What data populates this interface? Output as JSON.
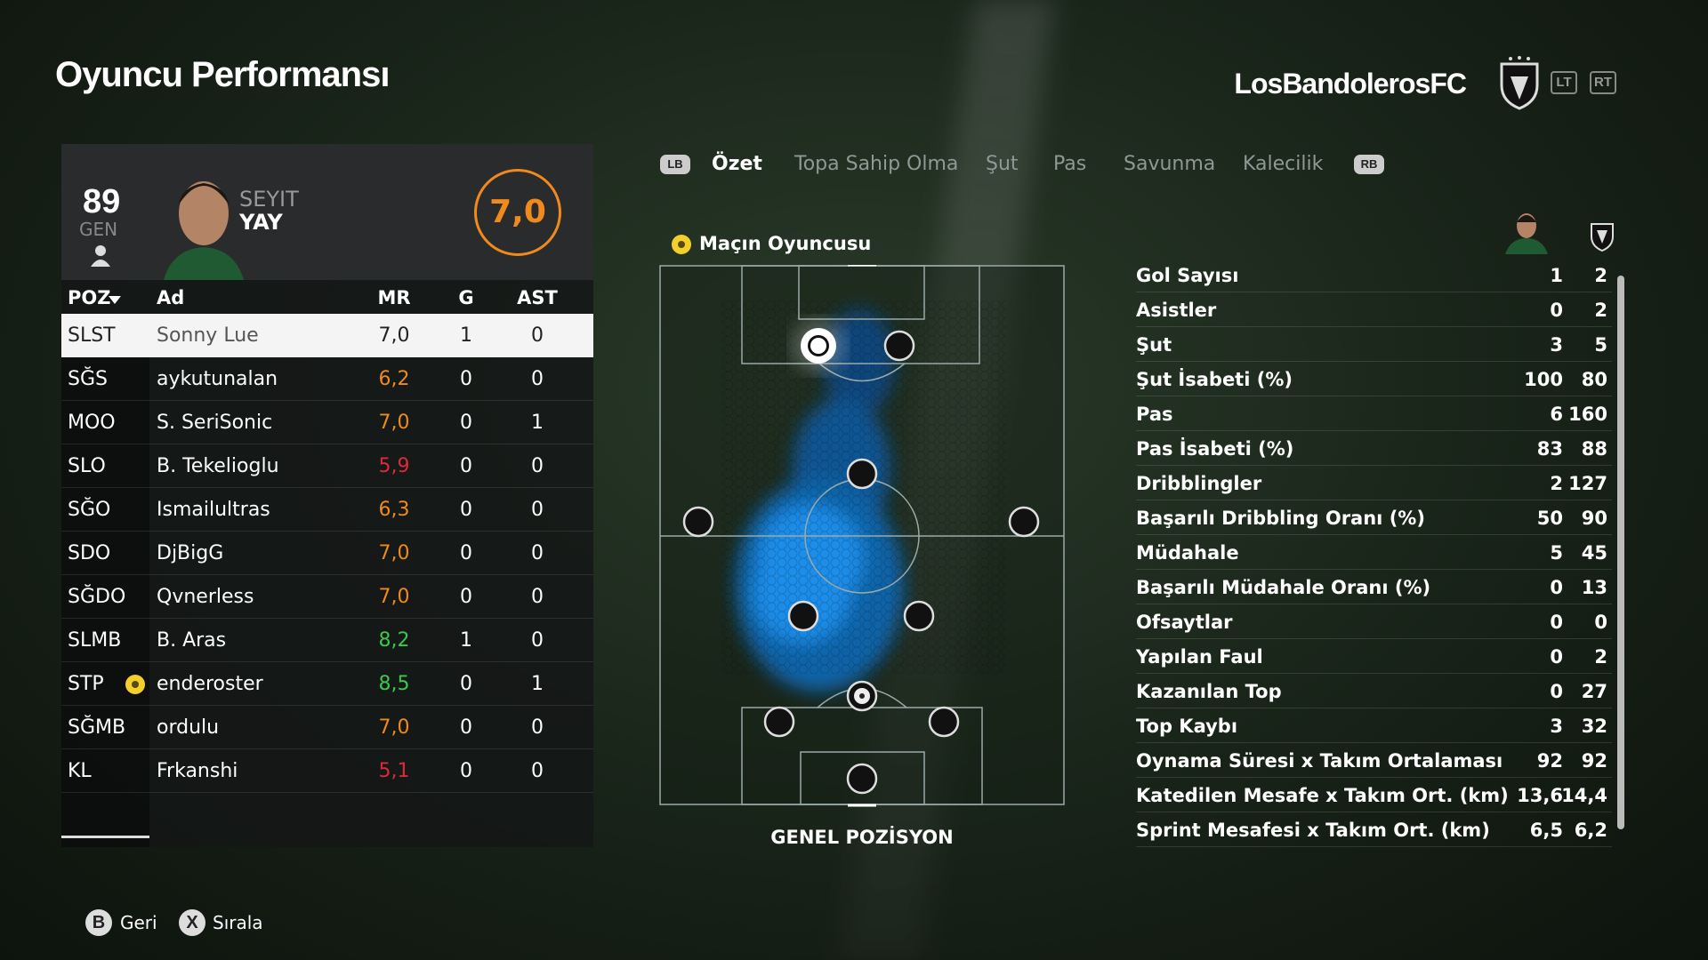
{
  "header": {
    "title": "Oyuncu Performansı",
    "team": "LosBandolerosFC",
    "buttons": [
      "LT",
      "RT"
    ]
  },
  "player_card": {
    "rating": "89",
    "rating_label": "GEN",
    "first_name": "SEYIT",
    "last_name": "YAY",
    "match_rating": "7,0"
  },
  "table": {
    "columns": [
      "POZ",
      "Ad",
      "MR",
      "G",
      "AST"
    ],
    "rows": [
      {
        "pos": "SLST",
        "name": "Sonny Lue",
        "mr": "7,0",
        "g": "1",
        "ast": "0",
        "mr_color": "#222222",
        "selected": true
      },
      {
        "pos": "SĞS",
        "name": "aykutunalan",
        "mr": "6,2",
        "g": "0",
        "ast": "0",
        "mr_color": "#f08a1c"
      },
      {
        "pos": "MOO",
        "name": "S. SeriSonic",
        "mr": "7,0",
        "g": "0",
        "ast": "1",
        "mr_color": "#f08a1c"
      },
      {
        "pos": "SLO",
        "name": "B. Tekelioglu",
        "mr": "5,9",
        "g": "0",
        "ast": "0",
        "mr_color": "#e0283c"
      },
      {
        "pos": "SĞO",
        "name": "Ismailultras",
        "mr": "6,3",
        "g": "0",
        "ast": "0",
        "mr_color": "#f08a1c"
      },
      {
        "pos": "SDO",
        "name": "DjBigG",
        "mr": "7,0",
        "g": "0",
        "ast": "0",
        "mr_color": "#f08a1c"
      },
      {
        "pos": "SĞDO",
        "name": "Qvnerless",
        "mr": "7,0",
        "g": "0",
        "ast": "0",
        "mr_color": "#f08a1c"
      },
      {
        "pos": "SLMB",
        "name": "B. Aras",
        "mr": "8,2",
        "g": "1",
        "ast": "0",
        "mr_color": "#3cc84a"
      },
      {
        "pos": "STP",
        "name": "enderoster",
        "mr": "8,5",
        "g": "0",
        "ast": "1",
        "mr_color": "#3cc84a",
        "motm": true
      },
      {
        "pos": "SĞMB",
        "name": "ordulu",
        "mr": "7,0",
        "g": "0",
        "ast": "0",
        "mr_color": "#f08a1c"
      },
      {
        "pos": "KL",
        "name": "Frkanshi",
        "mr": "5,1",
        "g": "0",
        "ast": "0",
        "mr_color": "#e0283c"
      }
    ]
  },
  "tabs": {
    "prev": "LB",
    "items": [
      "Özet",
      "Topa Sahip Olma",
      "Şut",
      "Pas",
      "Savunma",
      "Kalecilik"
    ],
    "next": "RB",
    "active": 0
  },
  "pitch": {
    "badge": "Maçın Oyuncusu",
    "caption": "GENEL POZİSYON"
  },
  "stats": {
    "rows": [
      [
        "Gol Sayısı",
        "1",
        "2"
      ],
      [
        "Asistler",
        "0",
        "2"
      ],
      [
        "Şut",
        "3",
        "5"
      ],
      [
        "Şut İsabeti (%)",
        "100",
        "80"
      ],
      [
        "Pas",
        "6",
        "160"
      ],
      [
        "Pas İsabeti (%)",
        "83",
        "88"
      ],
      [
        "Dribblingler",
        "2",
        "127"
      ],
      [
        "Başarılı Dribbling Oranı (%)",
        "50",
        "90"
      ],
      [
        "Müdahale",
        "5",
        "45"
      ],
      [
        "Başarılı Müdahale Oranı (%)",
        "0",
        "13"
      ],
      [
        "Ofsaytlar",
        "0",
        "0"
      ],
      [
        "Yapılan Faul",
        "0",
        "2"
      ],
      [
        "Kazanılan Top",
        "0",
        "27"
      ],
      [
        "Top Kaybı",
        "3",
        "32"
      ],
      [
        "Oynama Süresi x Takım Ortalaması",
        "92",
        "92"
      ],
      [
        "Katedilen Mesafe x Takım Ort. (km)",
        "13,6",
        "14,4"
      ],
      [
        "Sprint Mesafesi x Takım Ort. (km)",
        "6,5",
        "6,2"
      ]
    ]
  },
  "footer": {
    "actions": [
      {
        "key": "B",
        "label": "Geri"
      },
      {
        "key": "X",
        "label": "Sırala"
      }
    ]
  }
}
